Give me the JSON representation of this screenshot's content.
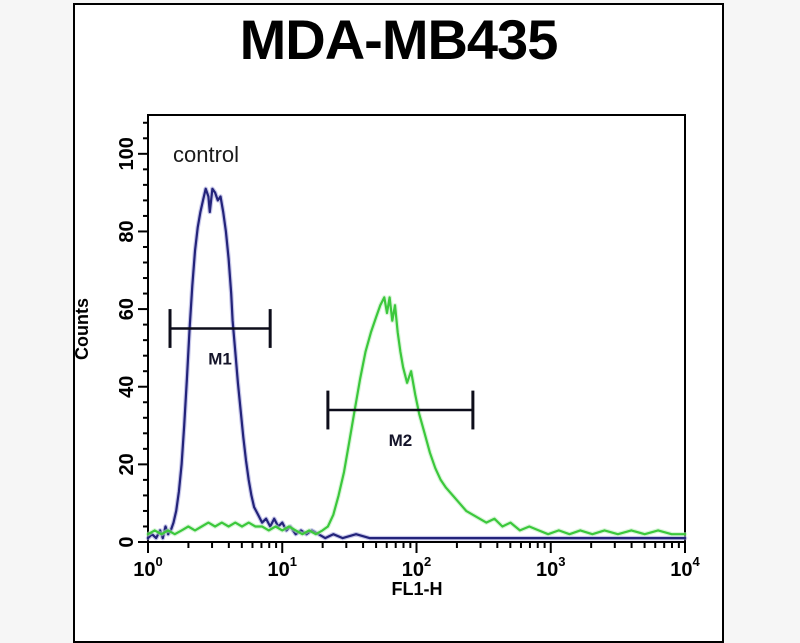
{
  "title": "MDA-MB435",
  "colors": {
    "page_background": "#f6f6f6",
    "panel_background": "#ffffff",
    "panel_border": "#000000",
    "axis": "#000000",
    "marker": "#0d0d1a",
    "blue_curve": "#23237a",
    "blue_glow": "#9a9ad8",
    "green_curve": "#3cc83c",
    "green_glow": "#b9ecb9"
  },
  "chart_data": {
    "type": "line",
    "subtype": "flow-cytometry-histogram",
    "title": "MDA-MB435",
    "annotation": "control",
    "xlabel": "FL1-H",
    "ylabel": "Counts",
    "x_scale": "log10",
    "xlim_log10": [
      0,
      4
    ],
    "ylim": [
      0,
      110
    ],
    "x_ticks_exponents": [
      0,
      1,
      2,
      3,
      4
    ],
    "y_ticks": [
      0,
      20,
      40,
      60,
      80,
      100
    ],
    "y_minor_step": 4,
    "grid": false,
    "legend": "none",
    "series": [
      {
        "name": "blue",
        "color": "#23237a",
        "glow": "#9a9ad8",
        "points_log10x_counts": [
          [
            0.0,
            1
          ],
          [
            0.03,
            2
          ],
          [
            0.06,
            1
          ],
          [
            0.09,
            3
          ],
          [
            0.11,
            1
          ],
          [
            0.13,
            4
          ],
          [
            0.15,
            2
          ],
          [
            0.17,
            3
          ],
          [
            0.19,
            5
          ],
          [
            0.21,
            8
          ],
          [
            0.23,
            13
          ],
          [
            0.25,
            20
          ],
          [
            0.27,
            30
          ],
          [
            0.29,
            42
          ],
          [
            0.31,
            55
          ],
          [
            0.33,
            66
          ],
          [
            0.35,
            75
          ],
          [
            0.37,
            81
          ],
          [
            0.39,
            85
          ],
          [
            0.41,
            88
          ],
          [
            0.43,
            91
          ],
          [
            0.45,
            89
          ],
          [
            0.46,
            85
          ],
          [
            0.48,
            91
          ],
          [
            0.5,
            90
          ],
          [
            0.52,
            88
          ],
          [
            0.54,
            89
          ],
          [
            0.56,
            85
          ],
          [
            0.58,
            80
          ],
          [
            0.6,
            73
          ],
          [
            0.62,
            64
          ],
          [
            0.63,
            57
          ],
          [
            0.65,
            49
          ],
          [
            0.67,
            41
          ],
          [
            0.69,
            34
          ],
          [
            0.71,
            27
          ],
          [
            0.73,
            21
          ],
          [
            0.75,
            16
          ],
          [
            0.77,
            12
          ],
          [
            0.79,
            9
          ],
          [
            0.82,
            7
          ],
          [
            0.85,
            5
          ],
          [
            0.88,
            6
          ],
          [
            0.91,
            4
          ],
          [
            0.94,
            6
          ],
          [
            0.97,
            4
          ],
          [
            1.0,
            5
          ],
          [
            1.03,
            3
          ],
          [
            1.06,
            4
          ],
          [
            1.1,
            2
          ],
          [
            1.14,
            3
          ],
          [
            1.18,
            2
          ],
          [
            1.22,
            3
          ],
          [
            1.27,
            2
          ],
          [
            1.32,
            1
          ],
          [
            1.38,
            2
          ],
          [
            1.45,
            1
          ],
          [
            1.55,
            2
          ],
          [
            1.65,
            1
          ],
          [
            1.8,
            1
          ],
          [
            2.0,
            1
          ],
          [
            2.2,
            1
          ],
          [
            2.45,
            1
          ],
          [
            2.7,
            1
          ],
          [
            3.0,
            1
          ],
          [
            3.3,
            1
          ],
          [
            3.6,
            1
          ],
          [
            3.85,
            1
          ],
          [
            4.0,
            1
          ]
        ]
      },
      {
        "name": "green",
        "color": "#3cc83c",
        "glow": "#b9ecb9",
        "points_log10x_counts": [
          [
            0.0,
            2
          ],
          [
            0.05,
            3
          ],
          [
            0.1,
            2
          ],
          [
            0.15,
            3
          ],
          [
            0.2,
            2
          ],
          [
            0.25,
            3
          ],
          [
            0.3,
            4
          ],
          [
            0.35,
            3
          ],
          [
            0.4,
            4
          ],
          [
            0.45,
            5
          ],
          [
            0.5,
            4
          ],
          [
            0.55,
            5
          ],
          [
            0.6,
            4
          ],
          [
            0.65,
            5
          ],
          [
            0.7,
            4
          ],
          [
            0.75,
            5
          ],
          [
            0.8,
            4
          ],
          [
            0.85,
            4
          ],
          [
            0.9,
            3
          ],
          [
            0.95,
            4
          ],
          [
            1.0,
            3
          ],
          [
            1.05,
            4
          ],
          [
            1.1,
            3
          ],
          [
            1.15,
            2
          ],
          [
            1.2,
            3
          ],
          [
            1.25,
            2
          ],
          [
            1.3,
            3
          ],
          [
            1.34,
            4
          ],
          [
            1.38,
            7
          ],
          [
            1.42,
            12
          ],
          [
            1.46,
            18
          ],
          [
            1.5,
            26
          ],
          [
            1.54,
            34
          ],
          [
            1.58,
            42
          ],
          [
            1.62,
            49
          ],
          [
            1.66,
            54
          ],
          [
            1.7,
            58
          ],
          [
            1.73,
            61
          ],
          [
            1.76,
            63
          ],
          [
            1.78,
            59
          ],
          [
            1.8,
            63
          ],
          [
            1.82,
            57
          ],
          [
            1.84,
            61
          ],
          [
            1.86,
            54
          ],
          [
            1.88,
            49
          ],
          [
            1.9,
            45
          ],
          [
            1.93,
            41
          ],
          [
            1.96,
            44
          ],
          [
            1.99,
            38
          ],
          [
            2.02,
            33
          ],
          [
            2.06,
            28
          ],
          [
            2.1,
            23
          ],
          [
            2.14,
            19
          ],
          [
            2.18,
            16
          ],
          [
            2.22,
            14
          ],
          [
            2.27,
            12
          ],
          [
            2.32,
            10
          ],
          [
            2.37,
            8
          ],
          [
            2.42,
            7
          ],
          [
            2.47,
            6
          ],
          [
            2.52,
            5
          ],
          [
            2.58,
            6
          ],
          [
            2.64,
            4
          ],
          [
            2.7,
            5
          ],
          [
            2.77,
            3
          ],
          [
            2.84,
            4
          ],
          [
            2.91,
            3
          ],
          [
            2.98,
            2
          ],
          [
            3.06,
            3
          ],
          [
            3.14,
            2
          ],
          [
            3.22,
            3
          ],
          [
            3.31,
            2
          ],
          [
            3.4,
            3
          ],
          [
            3.5,
            2
          ],
          [
            3.6,
            3
          ],
          [
            3.7,
            2
          ],
          [
            3.8,
            3
          ],
          [
            3.9,
            2
          ],
          [
            4.0,
            2
          ]
        ]
      }
    ],
    "markers": [
      {
        "label": "M1",
        "x1_log10": 0.164,
        "x2_log10": 0.91,
        "y_counts": 55,
        "cap_half_counts": 5
      },
      {
        "label": "M2",
        "x1_log10": 1.34,
        "x2_log10": 2.42,
        "y_counts": 34,
        "cap_half_counts": 5
      }
    ]
  }
}
